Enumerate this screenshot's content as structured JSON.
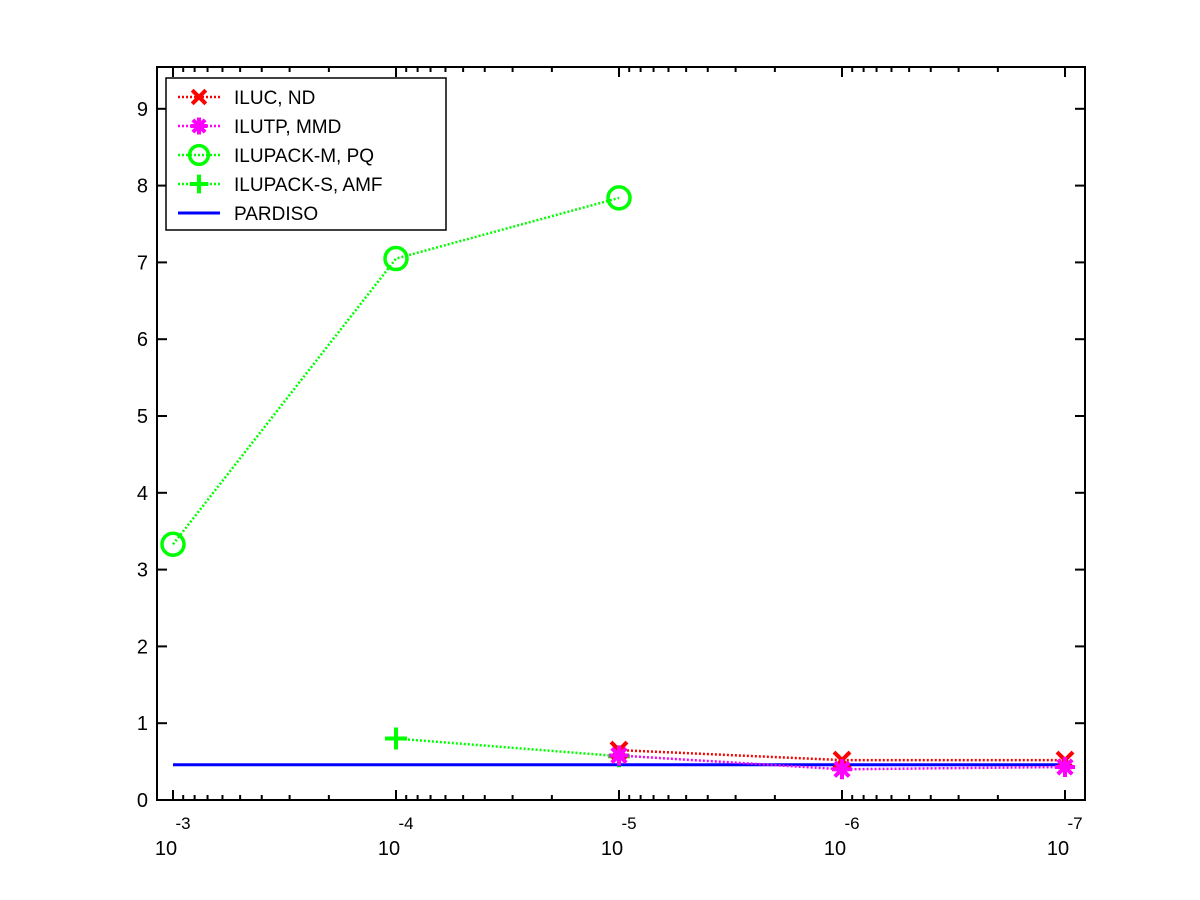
{
  "chart_data": {
    "type": "line",
    "x_scale": "log",
    "x_reversed": true,
    "x_ticks": [
      {
        "value": 0.001,
        "base": "10",
        "exponent": "-3"
      },
      {
        "value": 0.0001,
        "base": "10",
        "exponent": "-4"
      },
      {
        "value": 1e-05,
        "base": "10",
        "exponent": "-5"
      },
      {
        "value": 1e-06,
        "base": "10",
        "exponent": "-6"
      },
      {
        "value": 1e-07,
        "base": "10",
        "exponent": "-7"
      }
    ],
    "y_ticks": [
      "0",
      "1",
      "2",
      "3",
      "4",
      "5",
      "6",
      "7",
      "8",
      "9"
    ],
    "ylim": [
      0,
      9.5
    ],
    "xlim_exponent": [
      -3,
      -7
    ],
    "grid": false,
    "legend_position": "top-left",
    "series": [
      {
        "name": "ILUC,  ND",
        "color": "#ff0000",
        "marker": "x",
        "line": "dotted",
        "x": [
          1e-05,
          1e-06,
          1e-07
        ],
        "y": [
          0.65,
          0.52,
          0.52
        ]
      },
      {
        "name": "ILUTP, MMD",
        "color": "#ff00ff",
        "marker": "asterisk",
        "line": "dotted",
        "x": [
          1e-05,
          1e-06,
          1e-07
        ],
        "y": [
          0.58,
          0.4,
          0.43
        ]
      },
      {
        "name": "ILUPACK-M, PQ",
        "color": "#00ff00",
        "marker": "circle",
        "line": "dotted",
        "x": [
          0.001,
          0.0001,
          1e-05
        ],
        "y": [
          3.33,
          7.05,
          7.84
        ]
      },
      {
        "name": "ILUPACK-S, AMF",
        "color": "#00ff00",
        "marker": "plus",
        "line": "dotted",
        "x": [
          0.0001,
          1e-05
        ],
        "y": [
          0.8,
          0.57
        ]
      },
      {
        "name": "PARDISO",
        "color": "#0000ff",
        "marker": "none",
        "line": "solid",
        "x": [
          0.001,
          1e-07
        ],
        "y": [
          0.46,
          0.46
        ]
      }
    ]
  }
}
